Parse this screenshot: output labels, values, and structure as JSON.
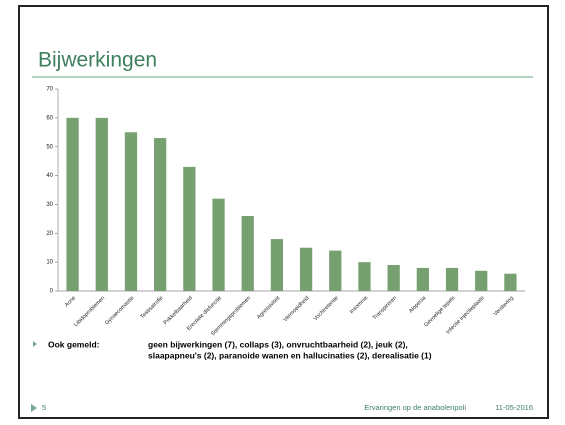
{
  "slide": {
    "title": "Bijwerkingen",
    "note_label": "Ook gemeld:",
    "note_lines": [
      "geen bijwerkingen (7), collaps (3), onvruchtbaarheid (2), jeuk (2),",
      "slaapapneu's (2), paranoide wanen en hallucinaties (2), derealisatie (1)"
    ],
    "page_number": "5",
    "footer": "Ervaringen op de anabolenpoli",
    "date": "11-05-2016"
  },
  "chart_data": {
    "type": "bar",
    "categories": [
      "Acne",
      "Libidoproblemen",
      "Gynaecomastie",
      "Testisatrofie",
      "Prikkelbaarheid",
      "Erectiele disfunctie",
      "Stemmingsproblemen",
      "Agressiviteit",
      "Vermoeidheid",
      "Vochtretentie",
      "Insomnia",
      "Transpireren",
      "Alopecia",
      "Gevoelige tepels",
      "Infectie injectieplaats",
      "Verslaving"
    ],
    "values": [
      60,
      60,
      55,
      53,
      43,
      32,
      26,
      18,
      15,
      14,
      10,
      9,
      8,
      8,
      7,
      6
    ],
    "color": "#77a070",
    "ylim": [
      0,
      70
    ],
    "yticks": [
      0,
      10,
      20,
      30,
      40,
      50,
      60,
      70
    ],
    "grid": false
  }
}
